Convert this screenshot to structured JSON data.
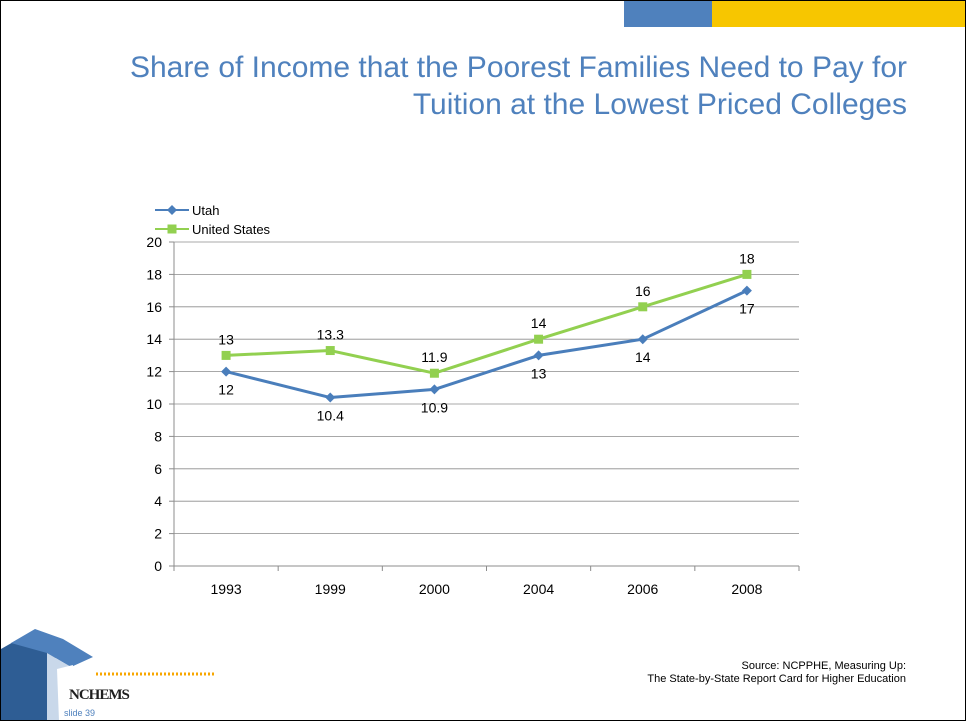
{
  "slide": {
    "title_line1": "Share of Income that the Poorest Families Need to Pay for",
    "title_line2": "Tuition at the Lowest Priced Colleges",
    "source_line1": "Source: NCPPHE, Measuring Up:",
    "source_line2": "The State-by-State Report Card for Higher Education",
    "logo_text": "NCHEMS",
    "slide_number": "slide 39",
    "colors": {
      "title": "#4f81bd",
      "accent_blue": "#4f81bd",
      "accent_yellow": "#f7c600"
    }
  },
  "chart_data": {
    "type": "line",
    "categories": [
      "1993",
      "1999",
      "2000",
      "2004",
      "2006",
      "2008"
    ],
    "ylim": [
      0,
      20
    ],
    "yticks": [
      0,
      2,
      4,
      6,
      8,
      10,
      12,
      14,
      16,
      18,
      20
    ],
    "grid": true,
    "legend": "top-left",
    "series": [
      {
        "name": "Utah",
        "values": [
          12,
          10.4,
          10.9,
          13,
          14,
          17
        ],
        "labels": [
          "12",
          "10.4",
          "10.9",
          "13",
          "14",
          "17"
        ],
        "color": "#4a7ebb",
        "marker": "diamond"
      },
      {
        "name": "United States",
        "values": [
          13,
          13.3,
          11.9,
          14,
          16,
          18
        ],
        "labels": [
          "13",
          "13.3",
          "11.9",
          "14",
          "16",
          "18"
        ],
        "color": "#92d050",
        "marker": "square"
      }
    ]
  }
}
